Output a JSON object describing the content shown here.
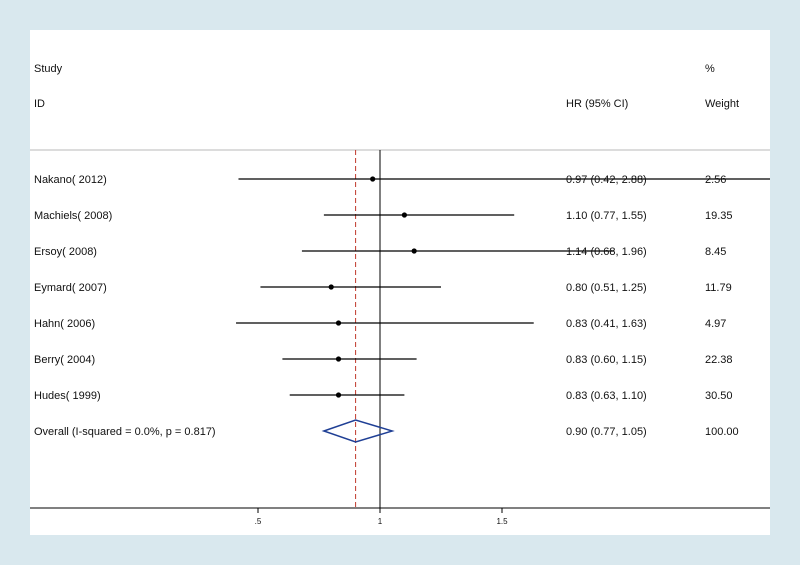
{
  "header": {
    "study": "Study",
    "id": "ID",
    "hr_ci": "HR (95% CI)",
    "pct": "%",
    "weight": "Weight"
  },
  "chart_data": {
    "type": "forest",
    "effect_measure": "HR (95% CI)",
    "studies": [
      {
        "label": "Nakano( 2012)",
        "hr": 0.97,
        "lo": 0.42,
        "hi": 2.88,
        "hr_ci": "0.97 (0.42, 2.88)",
        "weight": "2.56"
      },
      {
        "label": "Machiels( 2008)",
        "hr": 1.1,
        "lo": 0.77,
        "hi": 1.55,
        "hr_ci": "1.10 (0.77, 1.55)",
        "weight": "19.35"
      },
      {
        "label": "Ersoy( 2008)",
        "hr": 1.14,
        "lo": 0.68,
        "hi": 1.96,
        "hr_ci": "1.14 (0.68, 1.96)",
        "weight": "8.45"
      },
      {
        "label": "Eymard( 2007)",
        "hr": 0.8,
        "lo": 0.51,
        "hi": 1.25,
        "hr_ci": "0.80 (0.51, 1.25)",
        "weight": "11.79"
      },
      {
        "label": "Hahn( 2006)",
        "hr": 0.83,
        "lo": 0.41,
        "hi": 1.63,
        "hr_ci": "0.83 (0.41, 1.63)",
        "weight": "4.97"
      },
      {
        "label": "Berry( 2004)",
        "hr": 0.83,
        "lo": 0.6,
        "hi": 1.15,
        "hr_ci": "0.83 (0.60, 1.15)",
        "weight": "22.38"
      },
      {
        "label": "Hudes( 1999)",
        "hr": 0.83,
        "lo": 0.63,
        "hi": 1.1,
        "hr_ci": "0.83 (0.63, 1.10)",
        "weight": "30.50"
      }
    ],
    "overall": {
      "label": "Overall  (I-squared = 0.0%, p = 0.817)",
      "hr": 0.9,
      "lo": 0.77,
      "hi": 1.05,
      "hr_ci": "0.90 (0.77, 1.05)",
      "weight": "100.00"
    },
    "x_ticks": [
      0.5,
      1,
      1.5
    ],
    "x_tick_labels": [
      ".5",
      "1",
      "1.5"
    ],
    "reference_line": 1,
    "pooled_line": 0.9,
    "colors": {
      "background": "#d9e8ee",
      "panel": "#ffffff",
      "ci_line": "#000000",
      "point": "#000000",
      "diamond": "#1f3f95",
      "pooled_line": "#c0392b",
      "reference_line": "#000000"
    }
  }
}
